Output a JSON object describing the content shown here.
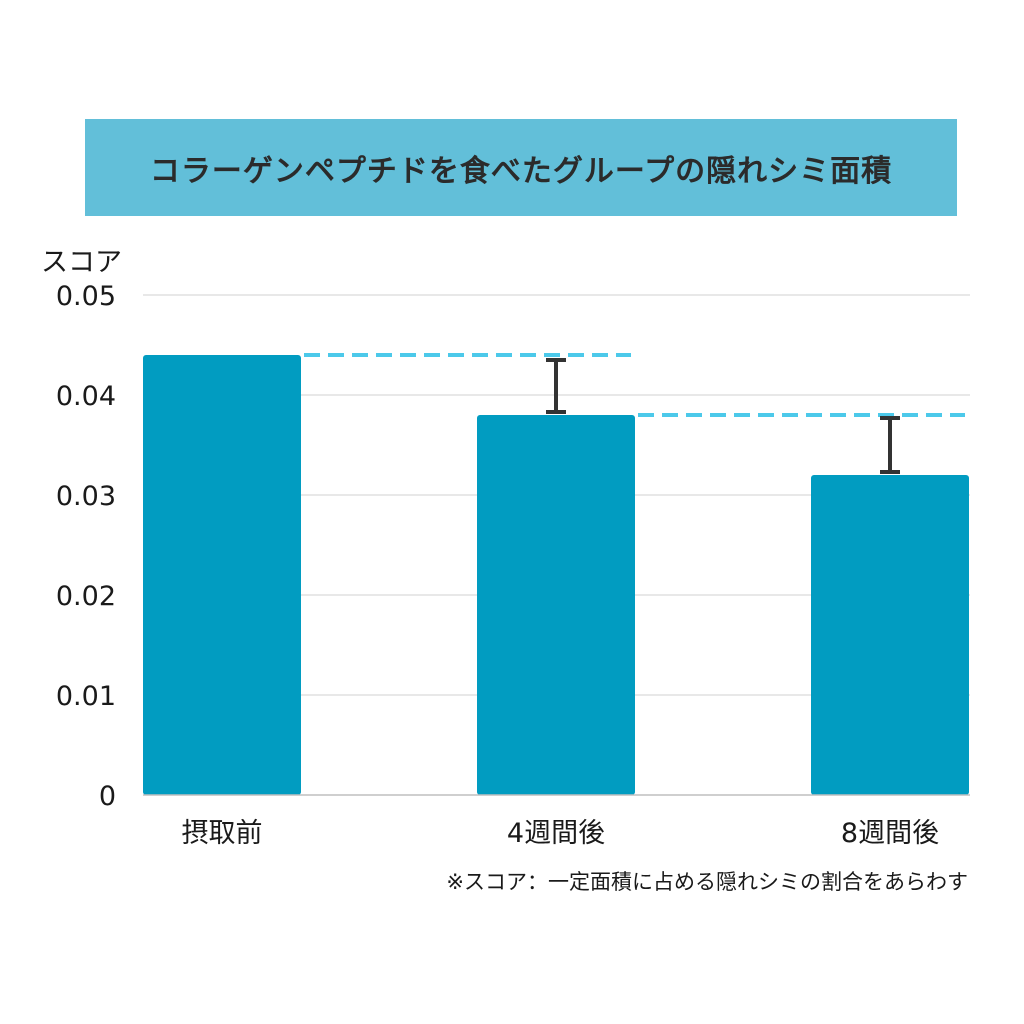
{
  "chart_data": {
    "type": "bar",
    "title": "コラーゲンペプチドを食べたグループの隠れシミ面積",
    "ylabel": "スコア",
    "xlabel": "",
    "ylim": [
      0,
      0.05
    ],
    "yticks": [
      "0",
      "0.01",
      "0.02",
      "0.03",
      "0.04",
      "0.05"
    ],
    "ytick_values": [
      0,
      0.01,
      0.02,
      0.03,
      0.04,
      0.05
    ],
    "grid": true,
    "categories": [
      "摂取前",
      "4週間後",
      "8週間後"
    ],
    "values": [
      0.044,
      0.038,
      0.032
    ],
    "error_upper": [
      null,
      0.0435,
      0.0377
    ],
    "error_lower": [
      null,
      0.0383,
      0.0323
    ],
    "reference_lines": [
      {
        "value": 0.044,
        "from_category": 0,
        "to_category": 1
      },
      {
        "value": 0.038,
        "from_category": 1,
        "to_category": 2
      }
    ],
    "footnote": "※スコア：一定面積に占める隠れシミの割合をあらわす"
  },
  "colors": {
    "bar": "#019cc1",
    "banner": "#62bfd9",
    "reference_line": "#4cc9ea",
    "error_bar": "#333333",
    "grid": "#d9d9d9"
  }
}
